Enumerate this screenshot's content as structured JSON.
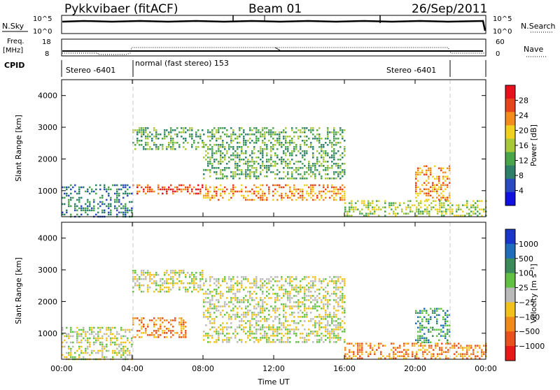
{
  "header": {
    "station": "Pykkvibaer (fitACF)",
    "beam": "Beam 01",
    "date": "26/Sep/2011"
  },
  "strips": {
    "nsky_label": "N.Sky",
    "nsky_ticks": [
      "10^5",
      "10^0"
    ],
    "nsearch_label": "N.Search",
    "nsearch_ticks": [
      "10^5",
      "10^0"
    ],
    "freq_label_1": "Freq.",
    "freq_label_2": "[MHz]",
    "freq_ticks": [
      "18",
      "8"
    ],
    "nave_label": "Nave",
    "nave_ticks": [
      "60",
      "0"
    ],
    "cpid_label": "CPID",
    "cpid_segments": [
      {
        "text": "Stereo -6401",
        "from_hour": 0,
        "to_hour": 4
      },
      {
        "text": "normal (fast stereo) 153",
        "from_hour": 4,
        "to_hour": 22
      },
      {
        "text": "Stereo -6401",
        "from_hour": 22,
        "to_hour": 24
      }
    ]
  },
  "x_axis": {
    "label": "Time UT",
    "ticks": [
      "00:00",
      "04:00",
      "08:00",
      "12:00",
      "16:00",
      "20:00",
      "00:00"
    ]
  },
  "panels": {
    "power": {
      "ylabel": "Slant Range [km]",
      "yticks": [
        "4000",
        "3000",
        "2000",
        "1000"
      ],
      "colorbar_label": "Power [dB]",
      "colorbar_ticks": [
        "28",
        "24",
        "20",
        "16",
        "12",
        "8",
        "4"
      ]
    },
    "velocity": {
      "ylabel": "Slant Range [km]",
      "yticks": [
        "4000",
        "3000",
        "2000",
        "1000"
      ],
      "colorbar_label": "Velocity [m s⁻¹]",
      "colorbar_ticks": [
        "1000",
        "500",
        "100",
        "25",
        "−25",
        "−100",
        "−500",
        "−1000"
      ]
    }
  },
  "colors": {
    "power_scale": [
      "#1010e0",
      "#2a4ac0",
      "#2e7f6a",
      "#4aa54a",
      "#a8c83c",
      "#f0d21e",
      "#f28c1c",
      "#e8441c",
      "#e8101c"
    ],
    "velocity_scale": [
      "#1a36c8",
      "#1e6ebc",
      "#3a8a5a",
      "#62c042",
      "#b9b9b9",
      "#f2c21a",
      "#f08a1a",
      "#e8501c",
      "#e81818"
    ],
    "mode_line": "#c8c8c8"
  },
  "chart_data": [
    {
      "type": "heatmap",
      "panel": "power",
      "title": "Pykkvibaer (fitACF) Beam 01 26/Sep/2011",
      "xlabel": "Time UT",
      "ylabel": "Slant Range [km]",
      "colorbar_label": "Power [dB]",
      "x_range_hours": [
        0,
        24
      ],
      "y_range_km": [
        180,
        4500
      ],
      "color_range": [
        0,
        30
      ],
      "echo_regions": [
        {
          "from_hour": 0,
          "to_hour": 4,
          "range_km": [
            200,
            1200
          ],
          "value": 6
        },
        {
          "from_hour": 4,
          "to_hour": 8,
          "range_km": [
            2300,
            3000
          ],
          "value": 10
        },
        {
          "from_hour": 4,
          "to_hour": 8,
          "range_km": [
            900,
            1200
          ],
          "value": 26
        },
        {
          "from_hour": 8,
          "to_hour": 16,
          "range_km": [
            700,
            1200
          ],
          "value": 24
        },
        {
          "from_hour": 8,
          "to_hour": 16,
          "range_km": [
            1400,
            3000
          ],
          "value": 12
        },
        {
          "from_hour": 16,
          "to_hour": 24,
          "range_km": [
            200,
            700
          ],
          "value": 14
        },
        {
          "from_hour": 20,
          "to_hour": 22,
          "range_km": [
            700,
            1800
          ],
          "value": 24
        }
      ]
    },
    {
      "type": "heatmap",
      "panel": "velocity",
      "xlabel": "Time UT",
      "ylabel": "Slant Range [km]",
      "colorbar_label": "Velocity [m s⁻¹]",
      "x_range_hours": [
        0,
        24
      ],
      "y_range_km": [
        180,
        4500
      ],
      "color_range": [
        -1000,
        1000
      ],
      "echo_regions": [
        {
          "from_hour": 0,
          "to_hour": 4,
          "range_km": [
            200,
            1200
          ],
          "value": 0
        },
        {
          "from_hour": 4,
          "to_hour": 8,
          "range_km": [
            2300,
            3000
          ],
          "value": 0
        },
        {
          "from_hour": 4,
          "to_hour": 7,
          "range_km": [
            900,
            1500
          ],
          "value": -100
        },
        {
          "from_hour": 8,
          "to_hour": 16,
          "range_km": [
            700,
            2800
          ],
          "value": 0
        },
        {
          "from_hour": 16,
          "to_hour": 24,
          "range_km": [
            200,
            700
          ],
          "value": -100
        },
        {
          "from_hour": 20,
          "to_hour": 22,
          "range_km": [
            700,
            1800
          ],
          "value": 100
        }
      ]
    }
  ]
}
